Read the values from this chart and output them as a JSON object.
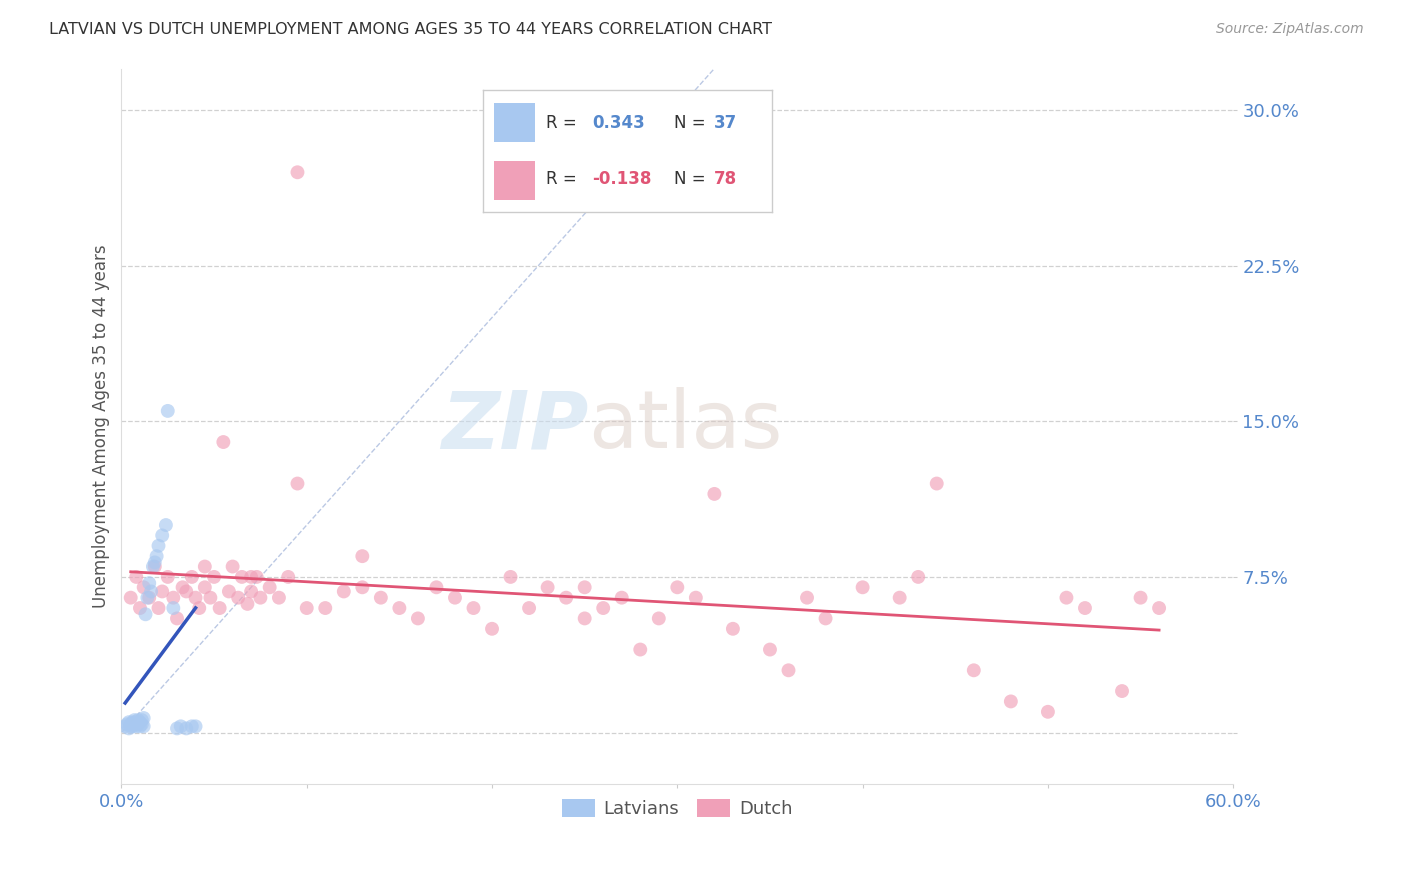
{
  "title": "LATVIAN VS DUTCH UNEMPLOYMENT AMONG AGES 35 TO 44 YEARS CORRELATION CHART",
  "source": "Source: ZipAtlas.com",
  "ylabel": "Unemployment Among Ages 35 to 44 years",
  "xlim": [
    0.0,
    0.6
  ],
  "ylim": [
    -0.025,
    0.32
  ],
  "yticks": [
    0.0,
    0.075,
    0.15,
    0.225,
    0.3
  ],
  "ytick_labels": [
    "",
    "7.5%",
    "15.0%",
    "22.5%",
    "30.0%"
  ],
  "xticks": [
    0.0,
    0.1,
    0.2,
    0.3,
    0.4,
    0.5,
    0.6
  ],
  "xtick_labels": [
    "0.0%",
    "",
    "",
    "",
    "",
    "",
    "60.0%"
  ],
  "r_latvian": 0.343,
  "n_latvian": 37,
  "r_dutch": -0.138,
  "n_dutch": 78,
  "legend_latvians": "Latvians",
  "legend_dutch": "Dutch",
  "latvian_color": "#a8c8f0",
  "dutch_color": "#f0a0b8",
  "latvian_line_color": "#3355bb",
  "dutch_line_color": "#e05575",
  "diagonal_color": "#a0b8e0",
  "title_color": "#333333",
  "axis_label_color": "#555555",
  "tick_color": "#5588cc",
  "watermark_zip": "ZIP",
  "watermark_atlas": "atlas",
  "background_color": "#ffffff",
  "latvian_x": [
    0.002,
    0.003,
    0.004,
    0.004,
    0.005,
    0.005,
    0.006,
    0.006,
    0.007,
    0.007,
    0.008,
    0.008,
    0.009,
    0.009,
    0.01,
    0.01,
    0.011,
    0.011,
    0.012,
    0.012,
    0.013,
    0.014,
    0.015,
    0.016,
    0.017,
    0.018,
    0.019,
    0.02,
    0.022,
    0.024,
    0.025,
    0.028,
    0.03,
    0.032,
    0.035,
    0.038,
    0.04
  ],
  "latvian_y": [
    0.003,
    0.004,
    0.002,
    0.005,
    0.003,
    0.004,
    0.003,
    0.005,
    0.004,
    0.006,
    0.003,
    0.005,
    0.004,
    0.006,
    0.003,
    0.005,
    0.004,
    0.006,
    0.003,
    0.007,
    0.057,
    0.065,
    0.072,
    0.068,
    0.08,
    0.082,
    0.085,
    0.09,
    0.095,
    0.1,
    0.155,
    0.06,
    0.002,
    0.003,
    0.002,
    0.003,
    0.003
  ],
  "dutch_x": [
    0.005,
    0.008,
    0.01,
    0.012,
    0.015,
    0.018,
    0.02,
    0.022,
    0.025,
    0.028,
    0.03,
    0.033,
    0.035,
    0.038,
    0.04,
    0.042,
    0.045,
    0.048,
    0.05,
    0.053,
    0.055,
    0.058,
    0.06,
    0.063,
    0.065,
    0.068,
    0.07,
    0.073,
    0.075,
    0.08,
    0.085,
    0.09,
    0.095,
    0.1,
    0.11,
    0.12,
    0.13,
    0.14,
    0.15,
    0.16,
    0.17,
    0.18,
    0.19,
    0.2,
    0.21,
    0.22,
    0.23,
    0.24,
    0.25,
    0.26,
    0.27,
    0.28,
    0.29,
    0.3,
    0.31,
    0.32,
    0.33,
    0.35,
    0.36,
    0.38,
    0.4,
    0.42,
    0.44,
    0.46,
    0.48,
    0.5,
    0.52,
    0.54,
    0.55,
    0.56,
    0.095,
    0.045,
    0.07,
    0.13,
    0.25,
    0.37,
    0.43,
    0.51
  ],
  "dutch_y": [
    0.065,
    0.075,
    0.06,
    0.07,
    0.065,
    0.08,
    0.06,
    0.068,
    0.075,
    0.065,
    0.055,
    0.07,
    0.068,
    0.075,
    0.065,
    0.06,
    0.07,
    0.065,
    0.075,
    0.06,
    0.14,
    0.068,
    0.08,
    0.065,
    0.075,
    0.062,
    0.068,
    0.075,
    0.065,
    0.07,
    0.065,
    0.075,
    0.27,
    0.06,
    0.06,
    0.068,
    0.07,
    0.065,
    0.06,
    0.055,
    0.07,
    0.065,
    0.06,
    0.05,
    0.075,
    0.06,
    0.07,
    0.065,
    0.055,
    0.06,
    0.065,
    0.04,
    0.055,
    0.07,
    0.065,
    0.115,
    0.05,
    0.04,
    0.03,
    0.055,
    0.07,
    0.065,
    0.12,
    0.03,
    0.015,
    0.01,
    0.06,
    0.02,
    0.065,
    0.06,
    0.12,
    0.08,
    0.075,
    0.085,
    0.07,
    0.065,
    0.075,
    0.065
  ]
}
